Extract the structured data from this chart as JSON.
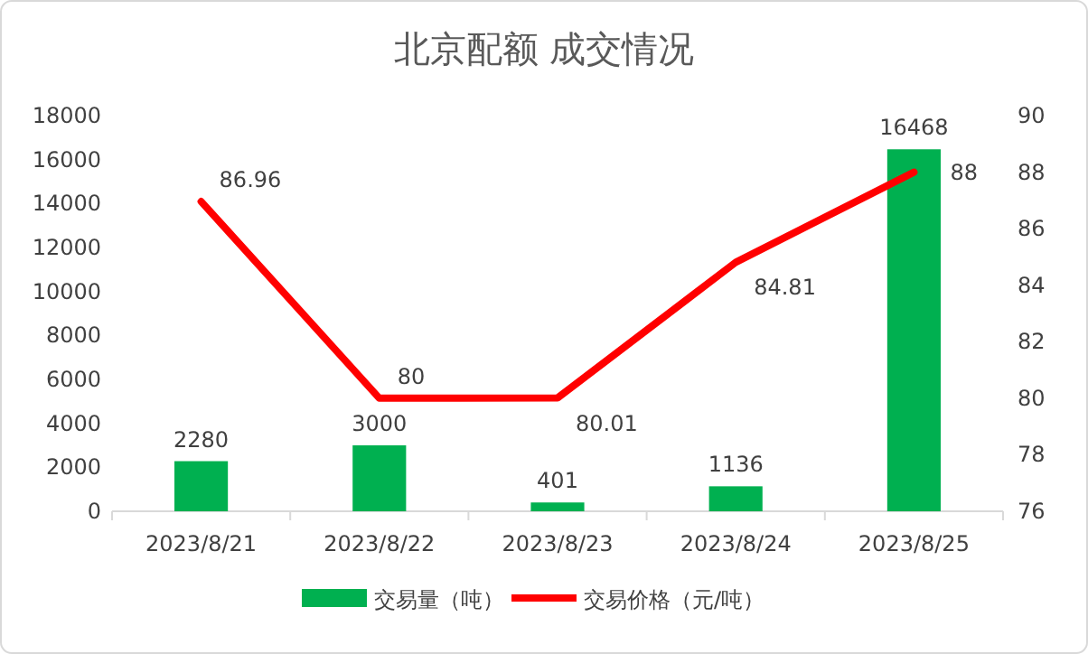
{
  "chart_data": {
    "type": "bar",
    "title": "北京配额 成交情况",
    "categories": [
      "2023/8/21",
      "2023/8/22",
      "2023/8/23",
      "2023/8/24",
      "2023/8/25"
    ],
    "series": [
      {
        "name": "交易量（吨）",
        "color": "#00b050",
        "values": [
          2280,
          3000,
          401,
          1136,
          16468
        ]
      },
      {
        "name": "交易价格（元/吨）",
        "type": "line",
        "axis": "y2",
        "color": "#ff0000",
        "values": [
          86.96,
          80,
          80.01,
          84.81,
          88
        ]
      }
    ],
    "ylim": [
      0,
      18000
    ],
    "yticks": [
      0,
      2000,
      4000,
      6000,
      8000,
      10000,
      12000,
      14000,
      16000,
      18000
    ],
    "y2lim": [
      76,
      90
    ],
    "y2ticks": [
      76,
      78,
      80,
      82,
      84,
      86,
      88,
      90
    ],
    "data_labels": true,
    "legend": "bottom"
  }
}
